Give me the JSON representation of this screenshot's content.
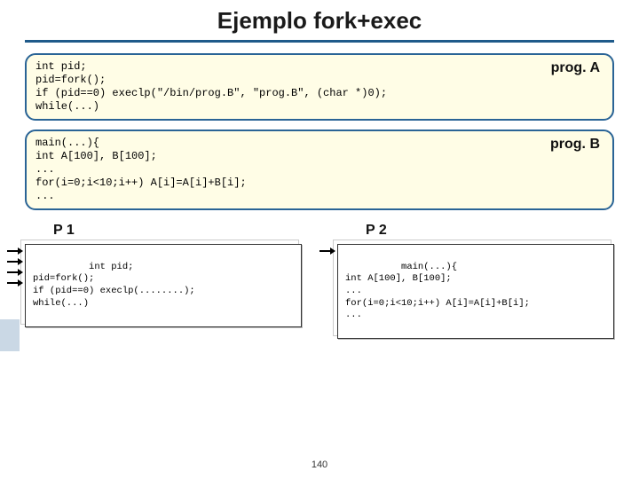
{
  "title": "Ejemplo fork+exec",
  "page_number": "140",
  "box_a": {
    "tag": "prog. A",
    "code": "int pid;\npid=fork();\nif (pid==0) execlp(\"/bin/prog.B\", \"prog.B\", (char *)0);\nwhile(...)",
    "border_color": "#2a6496",
    "bg_color": "#fffde6"
  },
  "box_b": {
    "tag": "prog. B",
    "code": "main(...){\nint A[100], B[100];\n...\nfor(i=0;i<10;i++) A[i]=A[i]+B[i];\n...",
    "border_color": "#2a6496",
    "bg_color": "#fffde6"
  },
  "p1": {
    "label": "P 1",
    "code": "int pid;\npid=fork();\nif (pid==0) execlp(........);\nwhile(...)",
    "arrow_count": 4
  },
  "p2": {
    "label": "P 2",
    "code": "main(...){\nint A[100], B[100];\n...\nfor(i=0;i<10;i++) A[i]=A[i]+B[i];\n...",
    "arrow_count": 1
  },
  "styles": {
    "title_fontsize": 26,
    "title_underline_color": "#1f5a8a",
    "code_fontsize": 12,
    "proc_fontsize": 10.5,
    "background": "#ffffff"
  }
}
